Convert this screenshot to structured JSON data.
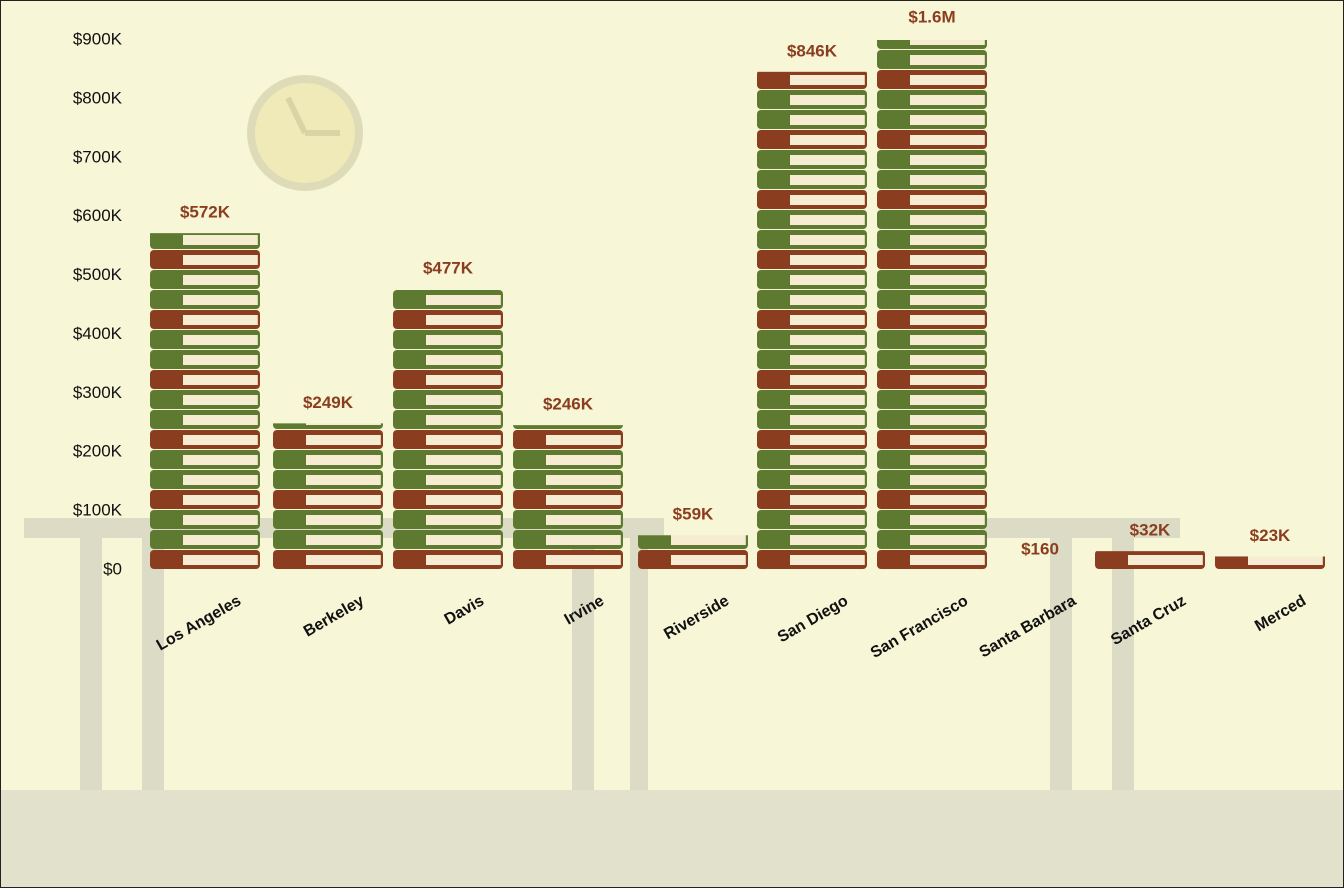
{
  "chart_data": {
    "type": "bar",
    "categories": [
      "Los Angeles",
      "Berkeley",
      "Davis",
      "Irvine",
      "Riverside",
      "San Diego",
      "San Francisco",
      "Santa Barbara",
      "Santa Cruz",
      "Merced"
    ],
    "values": [
      572000,
      249000,
      477000,
      246000,
      59000,
      846000,
      1600000,
      160,
      32000,
      23000
    ],
    "value_labels": [
      "$572K",
      "$249K",
      "$477K",
      "$246K",
      "$59K",
      "$846K",
      "$1.6M",
      "$160",
      "$32K",
      "$23K"
    ],
    "color": "#5e7a30",
    "ylim": [
      0,
      900000
    ],
    "yticks": [
      {
        "value": 0,
        "label": "$0"
      },
      {
        "value": 100000,
        "label": "$100K"
      },
      {
        "value": 200000,
        "label": "$200K"
      },
      {
        "value": 300000,
        "label": "$300K"
      },
      {
        "value": 400000,
        "label": "$400K"
      },
      {
        "value": 500000,
        "label": "$500K"
      },
      {
        "value": 600000,
        "label": "$600K"
      },
      {
        "value": 700000,
        "label": "$700K"
      },
      {
        "value": 800000,
        "label": "$800K"
      },
      {
        "value": 900000,
        "label": "$900K"
      }
    ],
    "grid": false
  }
}
